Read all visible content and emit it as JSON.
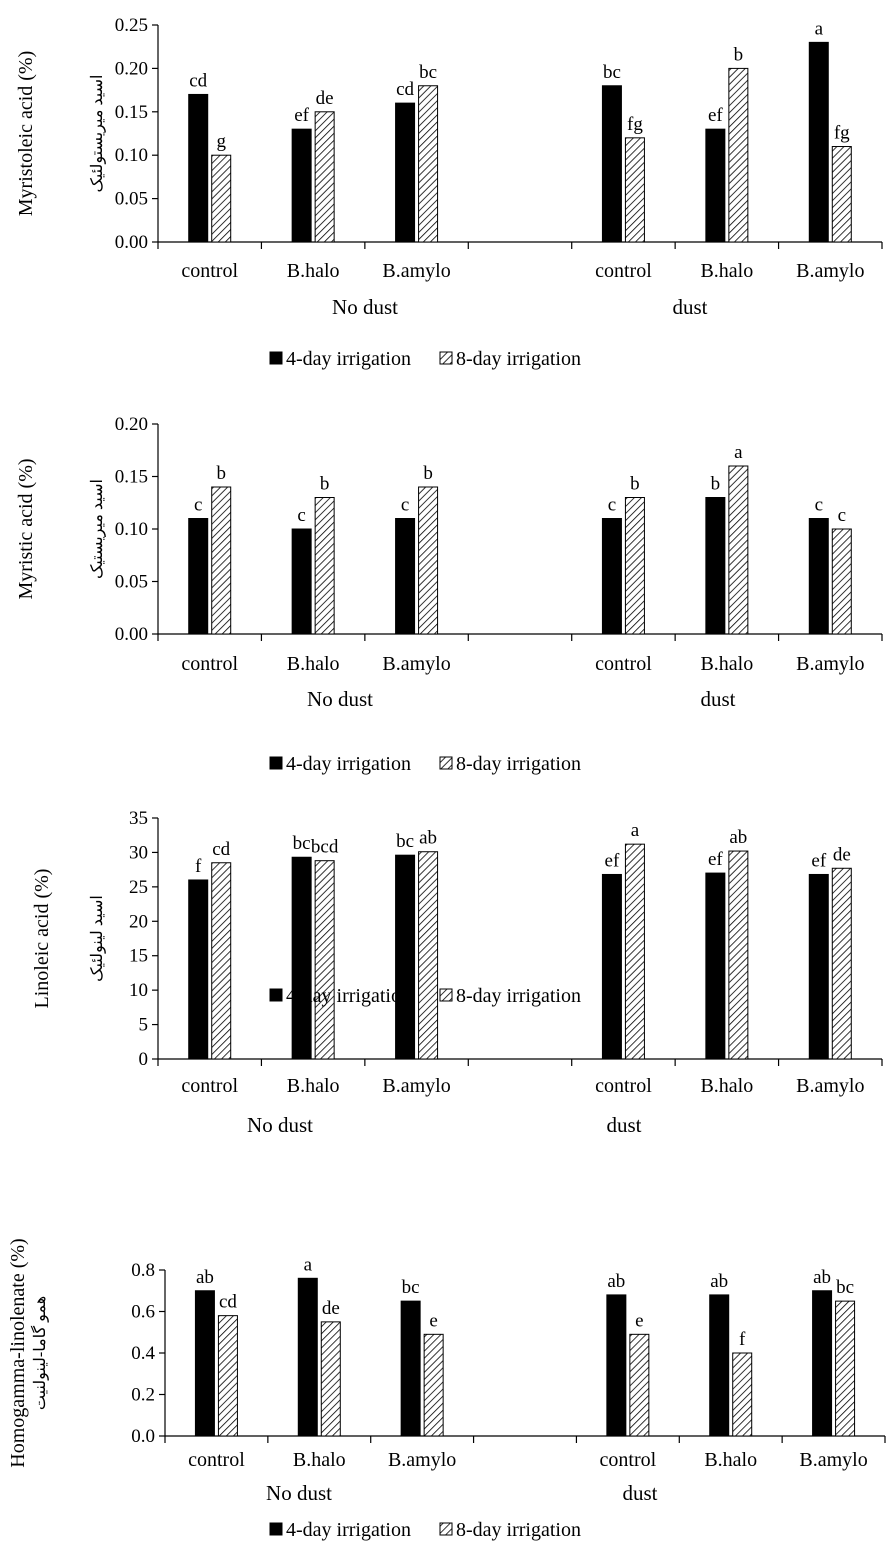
{
  "colors": {
    "series1": "#000000",
    "series2_hatch": "#000000",
    "background": "#ffffff"
  },
  "chart_data": [
    {
      "type": "bar",
      "ylabel": "Myristoleic acid (%)",
      "ylabel_fa": "اسید میریستولئیک",
      "ylim": [
        0,
        0.25
      ],
      "yticks": [
        "0.00",
        "0.05",
        "0.10",
        "0.15",
        "0.20",
        "0.25"
      ],
      "groups": [
        "No dust",
        "dust"
      ],
      "categories": [
        "control",
        "B.halo",
        "B.amylo",
        "control",
        "B.halo",
        "B.amylo"
      ],
      "series": [
        {
          "name": "4-day irrigation",
          "values": [
            0.17,
            0.13,
            0.16,
            0.18,
            0.13,
            0.23
          ],
          "labels": [
            "cd",
            "ef",
            "cd",
            "bc",
            "ef",
            "a"
          ]
        },
        {
          "name": "8-day irrigation",
          "values": [
            0.1,
            0.15,
            0.18,
            0.12,
            0.2,
            0.11
          ],
          "labels": [
            "g",
            "de",
            "bc",
            "fg",
            "b",
            "fg"
          ]
        }
      ]
    },
    {
      "type": "bar",
      "ylabel": "Myristic acid (%)",
      "ylabel_fa": "اسید میریستیک",
      "ylim": [
        0,
        0.2
      ],
      "yticks": [
        "0.00",
        "0.05",
        "0.10",
        "0.15",
        "0.20"
      ],
      "groups": [
        "No dust",
        "dust"
      ],
      "categories": [
        "control",
        "B.halo",
        "B.amylo",
        "control",
        "B.halo",
        "B.amylo"
      ],
      "series": [
        {
          "name": "4-day irrigation",
          "values": [
            0.11,
            0.1,
            0.11,
            0.11,
            0.13,
            0.11
          ],
          "labels": [
            "c",
            "c",
            "c",
            "c",
            "b",
            "c"
          ]
        },
        {
          "name": "8-day irrigation",
          "values": [
            0.14,
            0.13,
            0.14,
            0.13,
            0.16,
            0.1
          ],
          "labels": [
            "b",
            "b",
            "b",
            "b",
            "a",
            "c"
          ]
        }
      ]
    },
    {
      "type": "bar",
      "ylabel": "Linoleic acid (%)",
      "ylabel_fa": "اسید لینولئیک",
      "ylim": [
        0,
        35
      ],
      "yticks": [
        "0",
        "5",
        "10",
        "15",
        "20",
        "25",
        "30",
        "35"
      ],
      "groups": [
        "No dust",
        "dust"
      ],
      "categories": [
        "control",
        "B.halo",
        "B.amylo",
        "control",
        "B.halo",
        "B.amylo"
      ],
      "series": [
        {
          "name": "4-day irrigation",
          "values": [
            26.0,
            29.3,
            29.6,
            26.8,
            27.0,
            26.8
          ],
          "labels": [
            "f",
            "bc",
            "bc",
            "ef",
            "ef",
            "ef"
          ]
        },
        {
          "name": "8-day irrigation",
          "values": [
            28.5,
            28.8,
            30.1,
            31.2,
            30.2,
            27.7
          ],
          "labels": [
            "cd",
            "bcd",
            "ab",
            "a",
            "ab",
            "de"
          ]
        }
      ]
    },
    {
      "type": "bar",
      "ylabel": "Homogamma-linolenate (%)",
      "ylabel_fa": "همو گاما-لینولنیت",
      "ylim": [
        0,
        0.8
      ],
      "yticks": [
        "0.0",
        "0.2",
        "0.4",
        "0.6",
        "0.8"
      ],
      "groups": [
        "No dust",
        "dust"
      ],
      "categories": [
        "control",
        "B.halo",
        "B.amylo",
        "control",
        "B.halo",
        "B.amylo"
      ],
      "series": [
        {
          "name": "4-day irrigation",
          "values": [
            0.7,
            0.76,
            0.65,
            0.68,
            0.68,
            0.7
          ],
          "labels": [
            "ab",
            "a",
            "bc",
            "ab",
            "ab",
            "ab"
          ]
        },
        {
          "name": "8-day irrigation",
          "values": [
            0.58,
            0.55,
            0.49,
            0.49,
            0.4,
            0.65
          ],
          "labels": [
            "cd",
            "de",
            "e",
            "e",
            "f",
            "bc"
          ]
        }
      ]
    }
  ]
}
